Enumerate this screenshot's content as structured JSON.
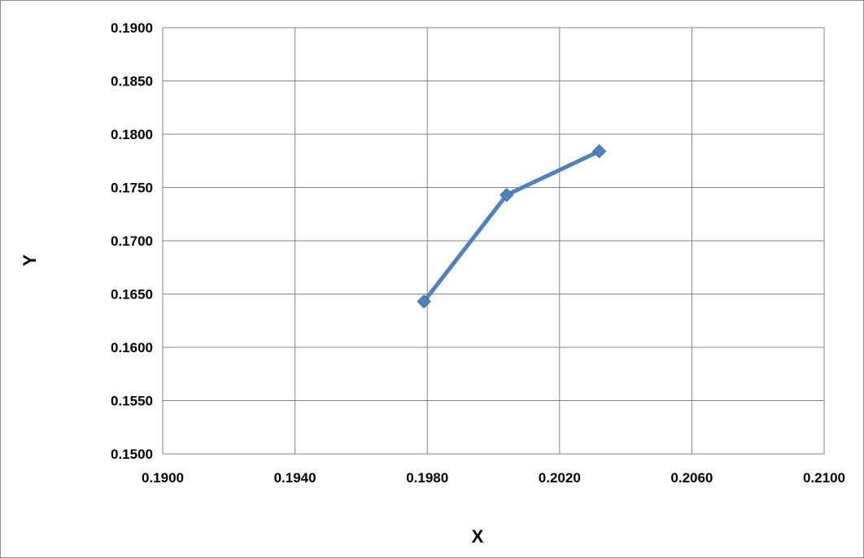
{
  "chart_data": {
    "type": "line",
    "title": "",
    "xlabel": "X",
    "ylabel": "Y",
    "xlim": [
      0.19,
      0.21
    ],
    "ylim": [
      0.15,
      0.19
    ],
    "x_ticks": [
      "0.1900",
      "0.1940",
      "0.1980",
      "0.2020",
      "0.2060",
      "0.2100"
    ],
    "y_ticks": [
      "0.1900",
      "0.1850",
      "0.1800",
      "0.1750",
      "0.1700",
      "0.1650",
      "0.1600",
      "0.1550",
      "0.1500"
    ],
    "grid": true,
    "legend": "none",
    "series": [
      {
        "x": [
          0.1979,
          0.2004,
          0.2032
        ],
        "y": [
          0.1643,
          0.1743,
          0.1784
        ],
        "color": "#4f81bd",
        "marker": "diamond"
      }
    ]
  }
}
